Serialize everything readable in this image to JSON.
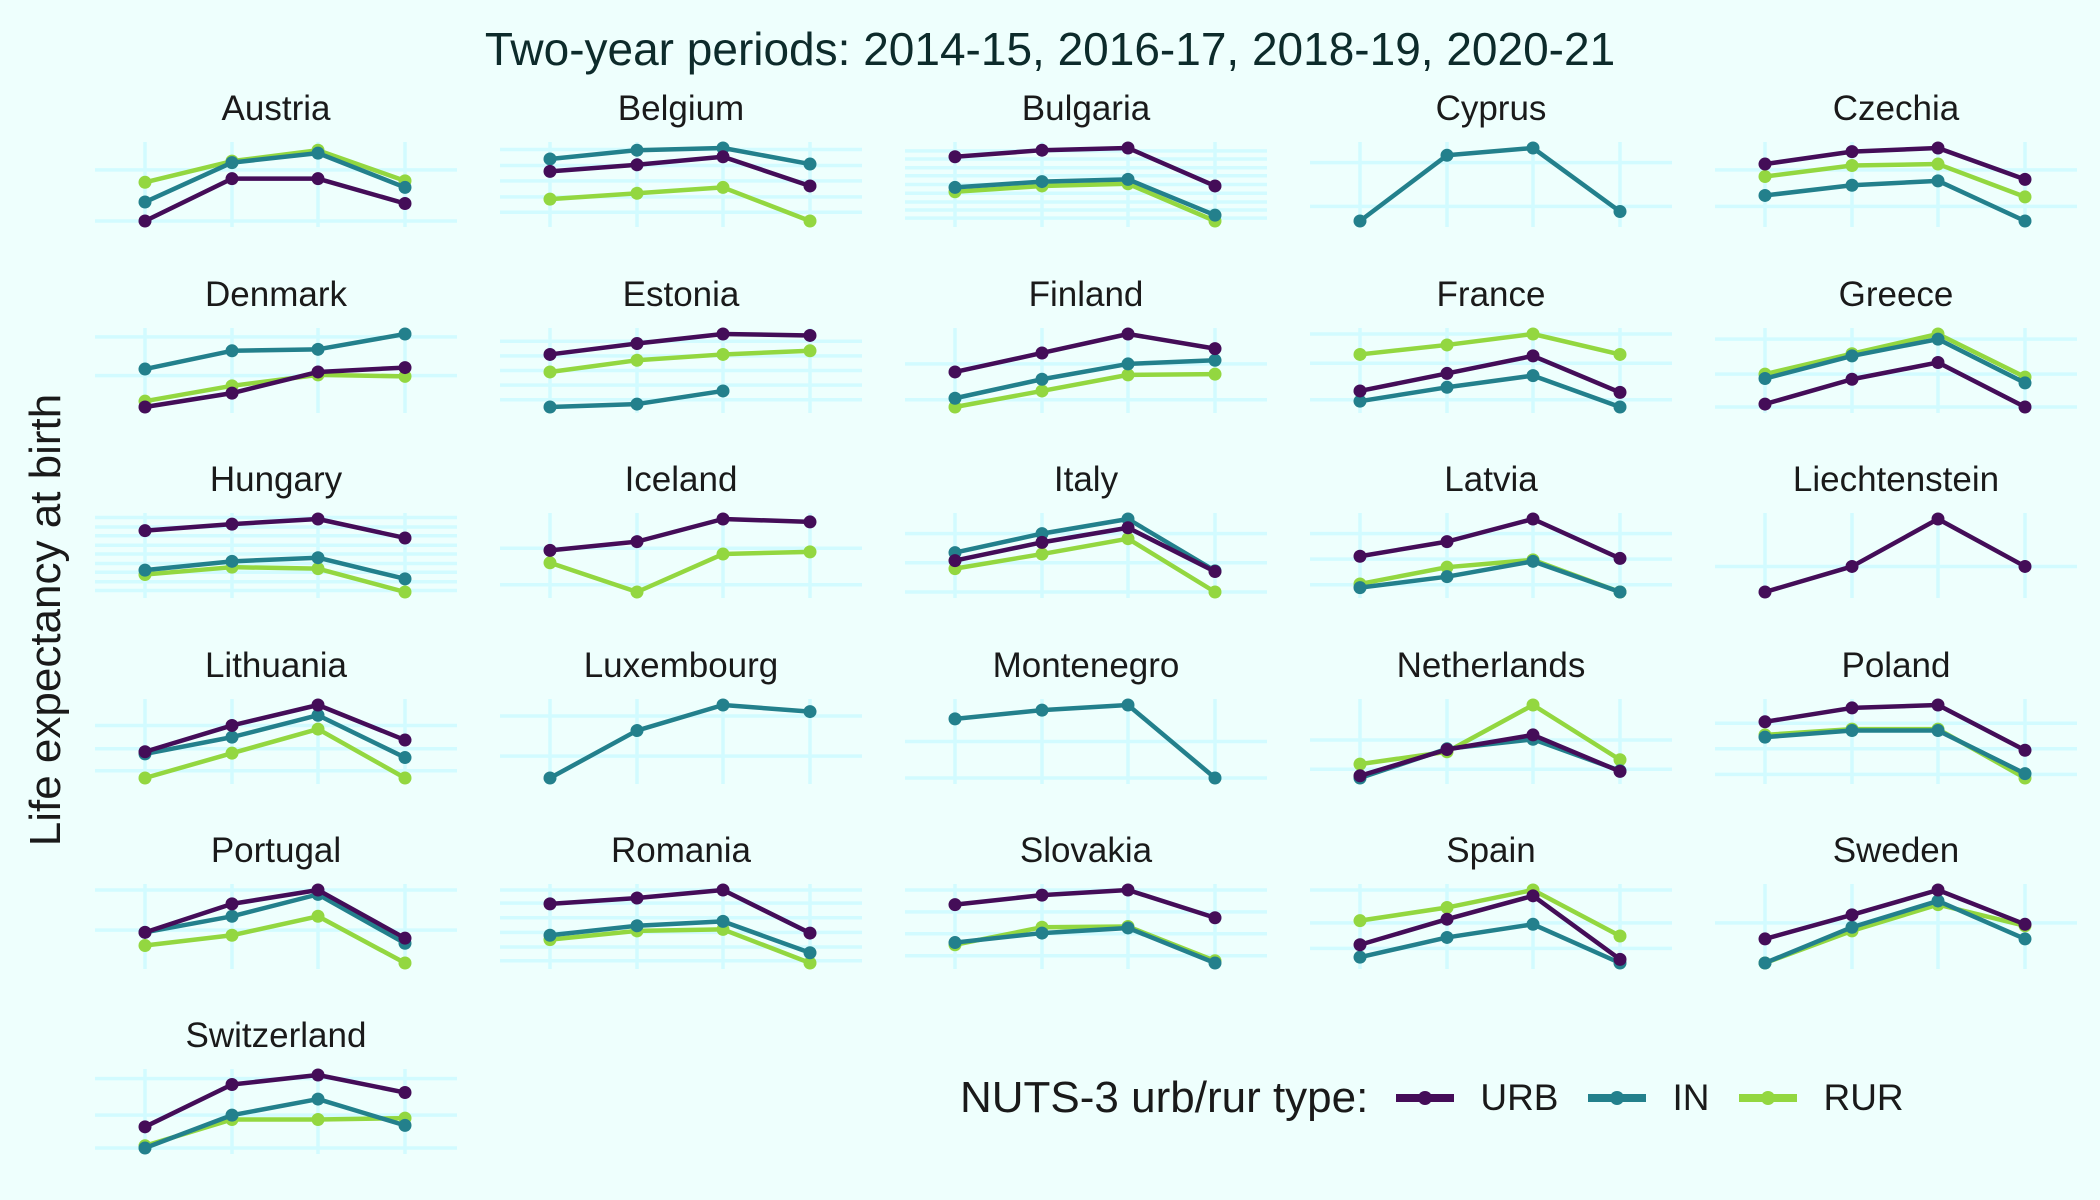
{
  "chart_data": {
    "type": "line",
    "title": "Two-year periods: 2014-15, 2016-17, 2018-19, 2020-21",
    "ylabel": "Life expectancy at birth",
    "x": [
      "2014-15",
      "2016-17",
      "2018-19",
      "2020-21"
    ],
    "legend": {
      "title": "NUTS-3 urb/rur type:",
      "position": "bottom-right",
      "entries": [
        {
          "key": "URB",
          "label": "URB",
          "color": "#440d58"
        },
        {
          "key": "IN",
          "label": "IN",
          "color": "#23808c"
        },
        {
          "key": "RUR",
          "label": "RUR",
          "color": "#93d740"
        }
      ]
    },
    "panels": [
      {
        "name": "Austria",
        "grid_y": [
          0,
          0.7
        ],
        "series": {
          "URB": [
            0.0,
            0.58,
            0.58,
            0.24
          ],
          "IN": [
            0.26,
            0.8,
            0.93,
            0.46
          ],
          "RUR": [
            0.53,
            0.82,
            0.97,
            0.55
          ]
        }
      },
      {
        "name": "Belgium",
        "grid_y": [
          0.12,
          0.33,
          0.55,
          0.76,
          0.98
        ],
        "series": {
          "URB": [
            0.68,
            0.77,
            0.88,
            0.48
          ],
          "IN": [
            0.85,
            0.97,
            1.0,
            0.78
          ],
          "RUR": [
            0.3,
            0.38,
            0.46,
            0.0
          ]
        }
      },
      {
        "name": "Bulgaria",
        "grid_y": [
          0.04,
          0.15,
          0.26,
          0.38,
          0.5,
          0.62,
          0.73,
          0.85,
          0.96
        ],
        "series": {
          "URB": [
            0.88,
            0.97,
            1.0,
            0.48
          ],
          "IN": [
            0.46,
            0.54,
            0.57,
            0.08
          ],
          "RUR": [
            0.4,
            0.48,
            0.51,
            0.0
          ]
        }
      },
      {
        "name": "Cyprus",
        "grid_y": [
          0.2,
          0.8
        ],
        "series": {
          "URB": [
            null,
            null,
            null,
            null
          ],
          "IN": [
            0.0,
            0.9,
            1.0,
            0.13
          ],
          "RUR": [
            null,
            null,
            null,
            null
          ]
        }
      },
      {
        "name": "Czechia",
        "grid_y": [
          0.2,
          0.7
        ],
        "series": {
          "URB": [
            0.78,
            0.95,
            1.0,
            0.57
          ],
          "IN": [
            0.35,
            0.49,
            0.55,
            0.0
          ],
          "RUR": [
            0.61,
            0.76,
            0.78,
            0.33
          ]
        }
      },
      {
        "name": "Denmark",
        "grid_y": [
          0.43,
          0.96
        ],
        "series": {
          "URB": [
            0.0,
            0.19,
            0.48,
            0.54
          ],
          "IN": [
            0.52,
            0.77,
            0.79,
            1.0
          ],
          "RUR": [
            0.08,
            0.29,
            0.44,
            0.42
          ]
        }
      },
      {
        "name": "Estonia",
        "grid_y": [
          0.1,
          0.3,
          0.5,
          0.7,
          0.9
        ],
        "series": {
          "URB": [
            0.72,
            0.87,
            1.0,
            0.98
          ],
          "IN": [
            0.0,
            0.04,
            0.22,
            null
          ],
          "RUR": [
            0.48,
            0.64,
            0.72,
            0.77
          ]
        }
      },
      {
        "name": "Finland",
        "grid_y": [
          0.1,
          0.59
        ],
        "series": {
          "URB": [
            0.48,
            0.74,
            1.0,
            0.8
          ],
          "IN": [
            0.12,
            0.38,
            0.59,
            0.64
          ],
          "RUR": [
            0.0,
            0.22,
            0.44,
            0.45
          ]
        }
      },
      {
        "name": "France",
        "grid_y": [
          0.1,
          0.6,
          1.0
        ],
        "series": {
          "URB": [
            0.22,
            0.46,
            0.7,
            0.2
          ],
          "IN": [
            0.08,
            0.27,
            0.43,
            0.0
          ],
          "RUR": [
            0.72,
            0.85,
            1.0,
            0.72
          ]
        }
      },
      {
        "name": "Greece",
        "grid_y": [
          0.0,
          0.45,
          0.93
        ],
        "series": {
          "URB": [
            0.04,
            0.38,
            0.61,
            0.0
          ],
          "IN": [
            0.39,
            0.7,
            0.93,
            0.33
          ],
          "RUR": [
            0.45,
            0.73,
            1.0,
            0.41
          ]
        }
      },
      {
        "name": "Hungary",
        "grid_y": [
          0.02,
          0.14,
          0.27,
          0.39,
          0.52,
          0.64,
          0.77,
          0.89,
          1.02
        ],
        "series": {
          "URB": [
            0.84,
            0.93,
            1.0,
            0.74
          ],
          "IN": [
            0.3,
            0.42,
            0.47,
            0.18
          ],
          "RUR": [
            0.24,
            0.34,
            0.32,
            0.0
          ]
        }
      },
      {
        "name": "Iceland",
        "grid_y": [
          0.1,
          0.6
        ],
        "series": {
          "URB": [
            0.57,
            0.69,
            1.0,
            0.96
          ],
          "IN": [
            null,
            null,
            null,
            null
          ],
          "RUR": [
            0.4,
            0.0,
            0.52,
            0.55
          ]
        }
      },
      {
        "name": "Italy",
        "grid_y": [
          0.0,
          0.4,
          0.8
        ],
        "series": {
          "URB": [
            0.43,
            0.68,
            0.88,
            0.28
          ],
          "IN": [
            0.54,
            0.8,
            1.0,
            0.29
          ],
          "RUR": [
            0.32,
            0.52,
            0.73,
            0.0
          ]
        }
      },
      {
        "name": "Latvia",
        "grid_y": [
          0.1,
          0.45,
          0.8
        ],
        "series": {
          "URB": [
            0.49,
            0.69,
            1.0,
            0.46
          ],
          "IN": [
            0.06,
            0.21,
            0.42,
            0.0
          ],
          "RUR": [
            0.11,
            0.34,
            0.44,
            0.0
          ]
        }
      },
      {
        "name": "Liechtenstein",
        "grid_y": [
          0.35
        ],
        "series": {
          "URB": [
            0.0,
            0.35,
            1.0,
            0.35
          ],
          "IN": [
            null,
            null,
            null,
            null
          ],
          "RUR": [
            null,
            null,
            null,
            null
          ]
        }
      },
      {
        "name": "Lithuania",
        "grid_y": [
          0.1,
          0.4,
          0.72
        ],
        "series": {
          "URB": [
            0.36,
            0.72,
            1.0,
            0.52
          ],
          "IN": [
            0.33,
            0.56,
            0.86,
            0.28
          ],
          "RUR": [
            0.0,
            0.34,
            0.67,
            0.0
          ]
        }
      },
      {
        "name": "Luxembourg",
        "grid_y": [
          0.3,
          0.85
        ],
        "series": {
          "URB": [
            null,
            null,
            null,
            null
          ],
          "IN": [
            0.0,
            0.65,
            1.0,
            0.91
          ],
          "RUR": [
            null,
            null,
            null,
            null
          ]
        }
      },
      {
        "name": "Montenegro",
        "grid_y": [
          0.0,
          0.5
        ],
        "series": {
          "URB": [
            null,
            null,
            null,
            null
          ],
          "IN": [
            0.81,
            0.93,
            1.0,
            0.0
          ],
          "RUR": [
            null,
            null,
            null,
            null
          ]
        }
      },
      {
        "name": "Netherlands",
        "grid_y": [
          0.12,
          0.52
        ],
        "series": {
          "URB": [
            0.03,
            0.39,
            0.59,
            0.09
          ],
          "IN": [
            0.0,
            0.4,
            0.53,
            0.1
          ],
          "RUR": [
            0.19,
            0.36,
            1.0,
            0.25
          ]
        }
      },
      {
        "name": "Poland",
        "grid_y": [
          0.05,
          0.4,
          0.75
        ],
        "series": {
          "URB": [
            0.77,
            0.96,
            1.0,
            0.38
          ],
          "IN": [
            0.56,
            0.65,
            0.65,
            0.06
          ],
          "RUR": [
            0.59,
            0.67,
            0.67,
            0.0
          ]
        }
      },
      {
        "name": "Portugal",
        "grid_y": [
          0.45,
          1.0
        ],
        "series": {
          "URB": [
            0.42,
            0.81,
            1.0,
            0.34
          ],
          "IN": [
            0.42,
            0.64,
            0.94,
            0.27
          ],
          "RUR": [
            0.24,
            0.38,
            0.64,
            0.0
          ]
        }
      },
      {
        "name": "Romania",
        "grid_y": [
          0.03,
          0.22,
          0.42,
          0.62,
          0.82,
          1.0
        ],
        "series": {
          "URB": [
            0.81,
            0.89,
            1.0,
            0.41
          ],
          "IN": [
            0.38,
            0.51,
            0.57,
            0.14
          ],
          "RUR": [
            0.32,
            0.44,
            0.46,
            0.0
          ]
        }
      },
      {
        "name": "Slovakia",
        "grid_y": [
          0.1,
          0.4,
          0.7,
          1.0
        ],
        "series": {
          "URB": [
            0.8,
            0.93,
            1.0,
            0.62
          ],
          "IN": [
            0.28,
            0.41,
            0.48,
            0.0
          ],
          "RUR": [
            0.25,
            0.49,
            0.5,
            0.03
          ]
        }
      },
      {
        "name": "Spain",
        "grid_y": [
          0.2,
          0.55,
          1.0
        ],
        "series": {
          "URB": [
            0.25,
            0.6,
            0.92,
            0.05
          ],
          "IN": [
            0.08,
            0.35,
            0.53,
            0.0
          ],
          "RUR": [
            0.58,
            0.76,
            1.0,
            0.37
          ]
        }
      },
      {
        "name": "Sweden",
        "grid_y": [
          0.55
        ],
        "series": {
          "URB": [
            0.33,
            0.66,
            1.0,
            0.53
          ],
          "IN": [
            0.0,
            0.49,
            0.85,
            0.33
          ],
          "RUR": [
            0.0,
            0.44,
            0.8,
            0.51
          ]
        }
      },
      {
        "name": "Switzerland",
        "grid_y": [
          0.0,
          0.45,
          0.95
        ],
        "series": {
          "URB": [
            0.29,
            0.87,
            1.0,
            0.76
          ],
          "IN": [
            0.0,
            0.45,
            0.67,
            0.31
          ],
          "RUR": [
            0.03,
            0.39,
            0.39,
            0.41
          ]
        }
      }
    ]
  }
}
